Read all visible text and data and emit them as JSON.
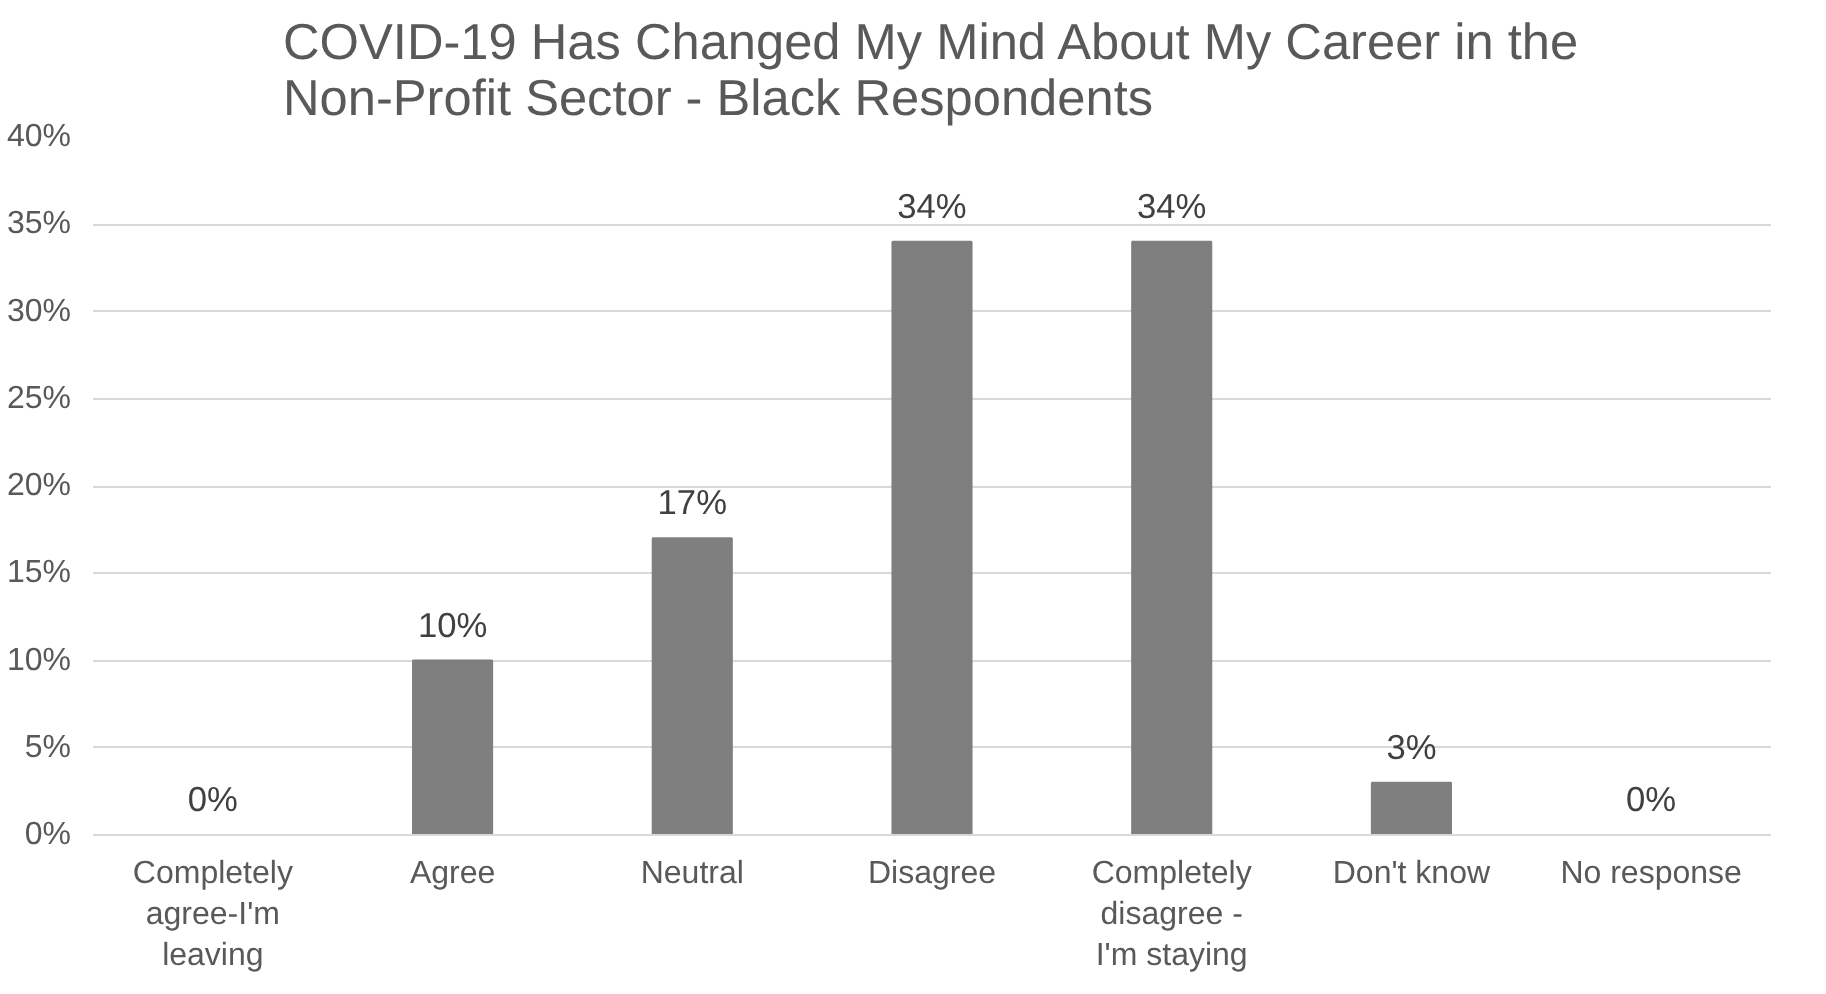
{
  "chart_data": {
    "type": "bar",
    "title": "COVID-19 Has Changed My Mind About My Career in the Non-Profit Sector - Black Respondents",
    "categories": [
      "Completely agree-I'm leaving",
      "Agree",
      "Neutral",
      "Disagree",
      "Completely disagree - I'm staying",
      "Don't know",
      "No response"
    ],
    "values": [
      0,
      10,
      17,
      34,
      34,
      3,
      0
    ],
    "color": "#7f7f7f",
    "ylim": [
      0,
      40
    ],
    "yticks": [
      {
        "value": 0,
        "label": "0%"
      },
      {
        "value": 5,
        "label": "5%"
      },
      {
        "value": 10,
        "label": "10%"
      },
      {
        "value": 15,
        "label": "15%"
      },
      {
        "value": 20,
        "label": "20%"
      },
      {
        "value": 25,
        "label": "25%"
      },
      {
        "value": 30,
        "label": "30%"
      },
      {
        "value": 35,
        "label": "35%"
      },
      {
        "value": 40,
        "label": "40%"
      }
    ],
    "value_labels": [
      "0%",
      "10%",
      "17%",
      "34%",
      "34%",
      "3%",
      "0%"
    ],
    "grid": "y"
  }
}
